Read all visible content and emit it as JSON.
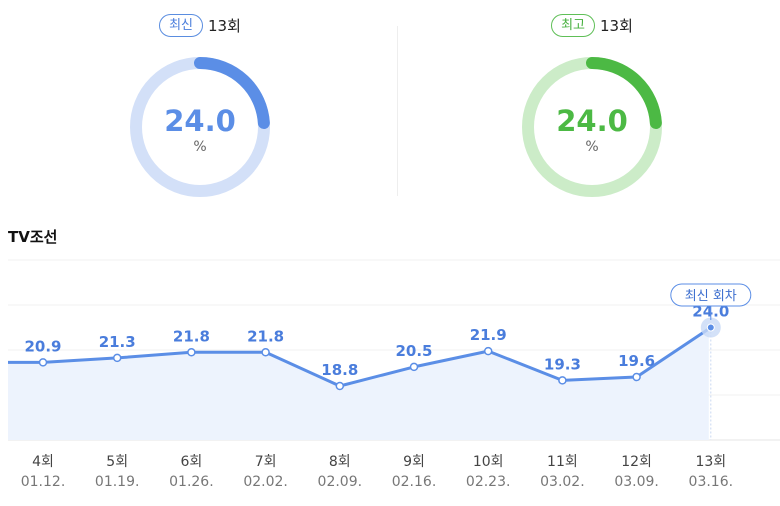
{
  "latest": {
    "badge": "최신",
    "episode": "13회",
    "value": "24.0",
    "unit": "%"
  },
  "best": {
    "badge": "최고",
    "episode": "13회",
    "value": "24.0",
    "unit": "%"
  },
  "colors": {
    "blue": "#5b8ee6",
    "blue_light": "#d3e0f8",
    "green": "#4cb944",
    "green_light": "#ccecc8",
    "area": "#edf3fd"
  },
  "channel": "TV조선",
  "chart_data": {
    "type": "line",
    "categories": [
      "4회",
      "5회",
      "6회",
      "7회",
      "8회",
      "9회",
      "10회",
      "11회",
      "12회",
      "13회"
    ],
    "dates": [
      "01.12.",
      "01.19.",
      "01.26.",
      "02.02.",
      "02.09.",
      "02.16.",
      "02.23.",
      "03.02.",
      "03.09.",
      "03.16."
    ],
    "series": [
      {
        "values": [
          20.9,
          21.3,
          21.8,
          21.8,
          18.8,
          20.5,
          21.9,
          19.3,
          19.6,
          24.0
        ]
      }
    ],
    "labels": [
      "20.9",
      "21.3",
      "21.8",
      "21.8",
      "18.8",
      "20.5",
      "21.9",
      "19.3",
      "19.6",
      "24.0"
    ],
    "ylim": [
      14,
      30
    ],
    "grid": true,
    "annotation": {
      "text": "최신 회차",
      "index": 9
    }
  }
}
